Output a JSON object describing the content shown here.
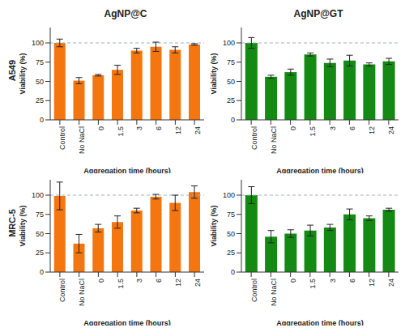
{
  "chart_data": [
    {
      "type": "bar",
      "title": "AgNP@C",
      "row_label": "A549",
      "x_label": "Aggregation time (hours)",
      "y_label": "Viability (%)",
      "categories": [
        "Control",
        "No NaCl",
        "0",
        "1.5",
        "3",
        "6",
        "12",
        "24"
      ],
      "values": [
        100,
        51,
        58,
        65,
        90,
        95,
        91,
        98
      ],
      "errors": [
        5,
        4,
        1,
        6,
        3,
        6,
        4,
        1
      ],
      "color": "#f5760f",
      "ylim": [
        0,
        120
      ],
      "yticks": [
        0,
        25,
        50,
        75,
        100
      ],
      "reference_line": 100,
      "grid": false
    },
    {
      "type": "bar",
      "title": "AgNP@GT",
      "x_label": "Aggregation time (hours)",
      "y_label": "Viability (%)",
      "categories": [
        "Control",
        "No NaCl",
        "0",
        "1.5",
        "3",
        "6",
        "12",
        "24"
      ],
      "values": [
        100,
        56,
        62,
        85,
        74,
        77,
        72,
        76
      ],
      "errors": [
        7,
        2,
        4,
        2,
        5,
        7,
        2,
        4
      ],
      "color": "#148a14",
      "ylim": [
        0,
        120
      ],
      "yticks": [
        0,
        25,
        50,
        75,
        100
      ],
      "reference_line": 100,
      "grid": false
    },
    {
      "type": "bar",
      "row_label": "MRC-5",
      "x_label": "Aggregation time (hours)",
      "y_label": "Viability (%)",
      "categories": [
        "Control",
        "No NaCl",
        "0",
        "1.5",
        "3",
        "6",
        "12",
        "24"
      ],
      "values": [
        99,
        37,
        57,
        65,
        80,
        98,
        90,
        104
      ],
      "errors": [
        18,
        12,
        5,
        8,
        3,
        3,
        10,
        8
      ],
      "color": "#f5760f",
      "ylim": [
        0,
        120
      ],
      "yticks": [
        0,
        25,
        50,
        75,
        100
      ],
      "reference_line": 100,
      "grid": false
    },
    {
      "type": "bar",
      "x_label": "Aggregation time (hours)",
      "y_label": "Viability (%)",
      "categories": [
        "Control",
        "No NaCl",
        "0",
        "1.5",
        "3",
        "6",
        "12",
        "24"
      ],
      "values": [
        100,
        46,
        50,
        54,
        58,
        75,
        70,
        81
      ],
      "errors": [
        11,
        8,
        5,
        7,
        4,
        7,
        3,
        2
      ],
      "color": "#148a14",
      "ylim": [
        0,
        120
      ],
      "yticks": [
        0,
        25,
        50,
        75,
        100
      ],
      "reference_line": 100,
      "grid": false
    }
  ]
}
